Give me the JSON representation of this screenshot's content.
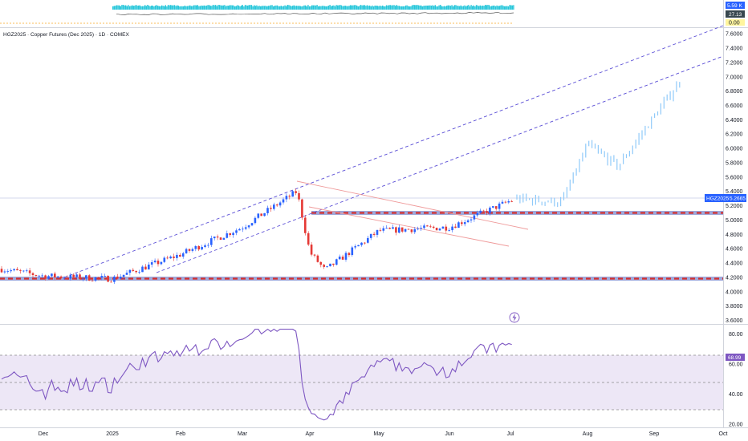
{
  "header": {
    "title": "HGZ2025 · Copper Futures (Dec 2025) · 1D · COMEX"
  },
  "volume_panel": {
    "badges": {
      "volume": "5.59 K",
      "value2": "27.13",
      "value3": "0.00"
    }
  },
  "price_tag": {
    "symbol": "HGZ2025",
    "value": "5.2665"
  },
  "rsi_panel": {
    "value_tag": "68.99",
    "overbought": 70,
    "oversold": 30
  },
  "colors": {
    "up": "#2962ff",
    "down": "#e53935",
    "projection": "#90caf9",
    "channel": "#5b4fd6",
    "zone": "#d32f2f",
    "zone_fill": "#9fa8da",
    "rsi_line": "#7e57c2",
    "rsi_band": "#ede7f6",
    "volume": "#26c6da"
  },
  "chart_data": [
    {
      "type": "candlestick",
      "title": "HGZ2025 · Copper Futures (Dec 2025) · 1D · COMEX",
      "x_ticks": [
        "Dec",
        "2025",
        "Feb",
        "Mar",
        "Apr",
        "May",
        "Jun",
        "Jul",
        "Aug",
        "Sep",
        "Oct"
      ],
      "y_ticks": [
        "7.6000",
        "7.4000",
        "7.2000",
        "7.0000",
        "6.8000",
        "6.6000",
        "6.4000",
        "6.2000",
        "6.0000",
        "5.8000",
        "5.6000",
        "5.4000",
        "5.2000",
        "5.0000",
        "4.8000",
        "4.6000",
        "4.4000",
        "4.2000",
        "4.0000",
        "3.8000",
        "3.6000"
      ],
      "ylim": [
        3.55,
        7.68
      ],
      "last_price": 5.2665,
      "support_zones": [
        5.05,
        4.17
      ],
      "price_path": {
        "months": [
          "Nov-26",
          "Dec",
          "2025",
          "Feb",
          "Mar",
          "Mar-25",
          "Apr",
          "Apr-08",
          "May",
          "Jun",
          "Jul"
        ],
        "prices": [
          4.32,
          4.22,
          4.18,
          4.52,
          4.9,
          5.4,
          4.55,
          4.3,
          4.85,
          4.9,
          5.27
        ]
      },
      "projection_path": {
        "months": [
          "Jul",
          "Jul-20",
          "Aug",
          "Aug-20",
          "Sep",
          "Sep-12"
        ],
        "prices": [
          5.3,
          5.25,
          6.05,
          5.75,
          6.45,
          6.95
        ]
      }
    },
    {
      "type": "line",
      "title": "RSI",
      "y_ticks": [
        "80.00",
        "60.00",
        "40.00",
        "20.00"
      ],
      "ylim": [
        18,
        86
      ],
      "levels": [
        70,
        50,
        30
      ],
      "last_value": 68.99
    }
  ]
}
